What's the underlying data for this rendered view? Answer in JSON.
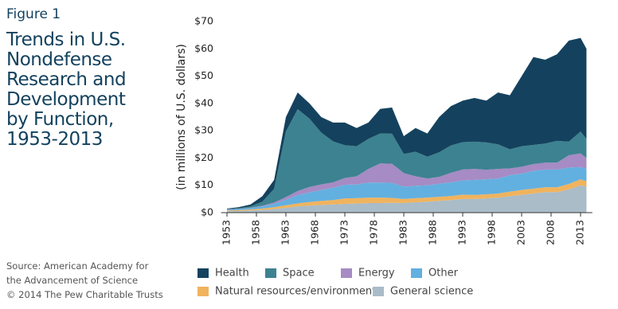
{
  "figure_label": "Figure 1",
  "chart_data": {
    "type": "stacked-area",
    "title": "Trends in U.S. Nondefense Research and Development by Function, 1953-2013",
    "ylabel": "(in millions of U.S. dollars)",
    "x": [
      1953,
      1955,
      1957,
      1959,
      1961,
      1963,
      1965,
      1967,
      1969,
      1971,
      1973,
      1975,
      1977,
      1979,
      1981,
      1983,
      1985,
      1987,
      1989,
      1991,
      1993,
      1995,
      1997,
      1999,
      2001,
      2003,
      2005,
      2007,
      2009,
      2011,
      2013,
      2014
    ],
    "xlim": [
      1952,
      2015
    ],
    "xticks": [
      1953,
      1958,
      1963,
      1968,
      1973,
      1978,
      1983,
      1988,
      1993,
      1998,
      2003,
      2008,
      2013
    ],
    "ylim": [
      0,
      70
    ],
    "yticks": [
      {
        "value": 0,
        "label": "$0"
      },
      {
        "value": 10,
        "label": "$10"
      },
      {
        "value": 20,
        "label": "$20"
      },
      {
        "value": 30,
        "label": "$30"
      },
      {
        "value": 40,
        "label": "$40"
      },
      {
        "value": 50,
        "label": "$50"
      },
      {
        "value": 60,
        "label": "$60"
      },
      {
        "value": 70,
        "label": "$70"
      }
    ],
    "series": [
      {
        "name": "Health",
        "color": "#14425e",
        "values": [
          0.2,
          0.4,
          0.7,
          2,
          3.3,
          5.3,
          6.1,
          5.6,
          5.7,
          6.9,
          8.3,
          6.7,
          6,
          9,
          9.6,
          6.5,
          8.7,
          8.5,
          12.9,
          14.4,
          15.2,
          16,
          15.3,
          19,
          19.8,
          25.7,
          32.2,
          30.7,
          31.7,
          37,
          34.3,
          33
        ]
      },
      {
        "name": "Space",
        "color": "#3d8291",
        "values": [
          0.1,
          0.2,
          0.5,
          1.5,
          5,
          24,
          30,
          25,
          19,
          15,
          12,
          11,
          11,
          11,
          11,
          7,
          9,
          8,
          9,
          10,
          10,
          10,
          10,
          9,
          7,
          7.5,
          7,
          7,
          8,
          5,
          8,
          7
        ]
      },
      {
        "name": "Energy",
        "color": "#a68bc4",
        "values": [
          0.1,
          0.1,
          0.1,
          0.2,
          0.5,
          1,
          1.5,
          2,
          2,
          2,
          2.5,
          3,
          5,
          7,
          7,
          5,
          3.5,
          2.5,
          2.5,
          3.5,
          4,
          4,
          3.5,
          3.5,
          2.5,
          2.5,
          2.5,
          2.5,
          2.5,
          4.5,
          5,
          4
        ]
      },
      {
        "name": "Other",
        "color": "#62b0e0",
        "values": [
          0.3,
          0.4,
          0.5,
          0.8,
          1.2,
          2,
          3,
          3.5,
          4,
          4.5,
          5,
          5,
          5.5,
          5.5,
          5.5,
          4.5,
          4.5,
          4.5,
          4.8,
          5,
          5.2,
          5.5,
          5.5,
          5.5,
          6,
          6,
          6.5,
          6.5,
          6.5,
          6,
          4.5,
          4.5
        ]
      },
      {
        "name": "Natural resources/environment",
        "color": "#f0b35e",
        "values": [
          0.3,
          0.3,
          0.4,
          0.5,
          0.7,
          0.9,
          1.1,
          1.3,
          1.5,
          1.6,
          2,
          2,
          2,
          2,
          1.8,
          1.5,
          1.5,
          1.5,
          1.5,
          1.5,
          1.6,
          1.5,
          1.5,
          1.5,
          1.7,
          1.8,
          1.8,
          1.8,
          1.8,
          2,
          2.2,
          2
        ]
      },
      {
        "name": "General science",
        "color": "#a9bcc8",
        "values": [
          0.5,
          0.6,
          0.8,
          1,
          1.3,
          1.8,
          2.3,
          2.6,
          2.8,
          3,
          3.2,
          3.3,
          3.5,
          3.5,
          3.6,
          3.5,
          3.8,
          4,
          4.3,
          4.6,
          5,
          5,
          5.2,
          5.5,
          6,
          6.5,
          7,
          7.5,
          7.5,
          8.5,
          10,
          9.5
        ]
      }
    ]
  },
  "source": [
    "Source: American Academy for the Advancement of Science",
    "© 2014 The Pew Charitable Trusts"
  ]
}
